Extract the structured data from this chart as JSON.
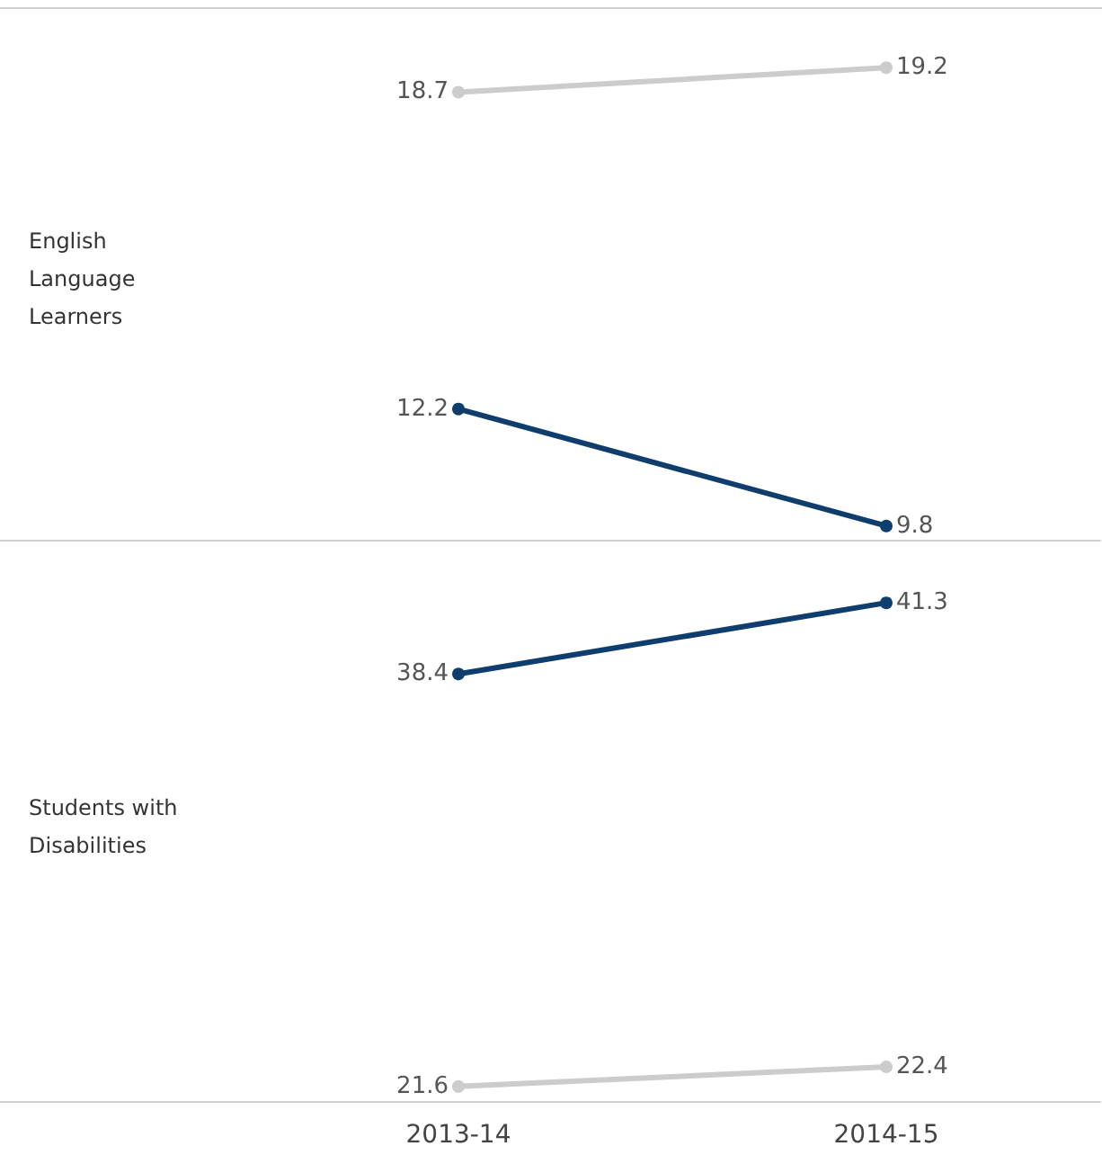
{
  "chart_data": [
    {
      "type": "line",
      "ylabel": "English Language Learners",
      "categories": [
        "2013-14",
        "2014-15"
      ],
      "series": [
        {
          "color": "#cccccc",
          "values": [
            18.7,
            19.2
          ]
        },
        {
          "color": "#0f3e6e",
          "values": [
            12.2,
            9.8
          ]
        }
      ],
      "data_labels": true,
      "marker": "circle",
      "line_style": "solid",
      "tick_labels": false
    },
    {
      "type": "line",
      "ylabel": "Students with Disabilities",
      "categories": [
        "2013-14",
        "2014-15"
      ],
      "series": [
        {
          "color": "#0f3e6e",
          "values": [
            38.4,
            41.3
          ]
        },
        {
          "color": "#cccccc",
          "values": [
            21.6,
            22.4
          ]
        }
      ],
      "data_labels": true,
      "marker": "circle",
      "line_style": "solid",
      "tick_labels": "x"
    }
  ]
}
